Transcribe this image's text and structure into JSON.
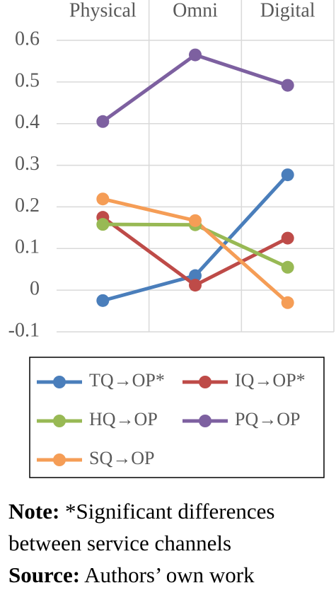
{
  "chart_data": {
    "type": "line",
    "categories": [
      "Physical",
      "Omni",
      "Digital"
    ],
    "series": [
      {
        "name": "TQ→OP*",
        "color": "#4a7ebb",
        "values": [
          -0.025,
          0.035,
          0.277
        ]
      },
      {
        "name": "IQ→OP*",
        "color": "#be4b48",
        "values": [
          0.175,
          0.012,
          0.125
        ]
      },
      {
        "name": "HQ→OP",
        "color": "#98b954",
        "values": [
          0.158,
          0.157,
          0.055
        ]
      },
      {
        "name": "PQ→OP",
        "color": "#7d60a0",
        "values": [
          0.405,
          0.565,
          0.492
        ]
      },
      {
        "name": "SQ→OP",
        "color": "#f59d56",
        "values": [
          0.219,
          0.167,
          -0.03
        ]
      }
    ],
    "ylim": [
      -0.1,
      0.6
    ],
    "yticks": [
      -0.1,
      0,
      0.1,
      0.2,
      0.3,
      0.4,
      0.5,
      0.6
    ],
    "grid": true
  },
  "notes": {
    "note_label": "Note:",
    "note_text": "*Significant differences between service channels",
    "source_label": "Source:",
    "source_text": "Authors’ own work"
  }
}
